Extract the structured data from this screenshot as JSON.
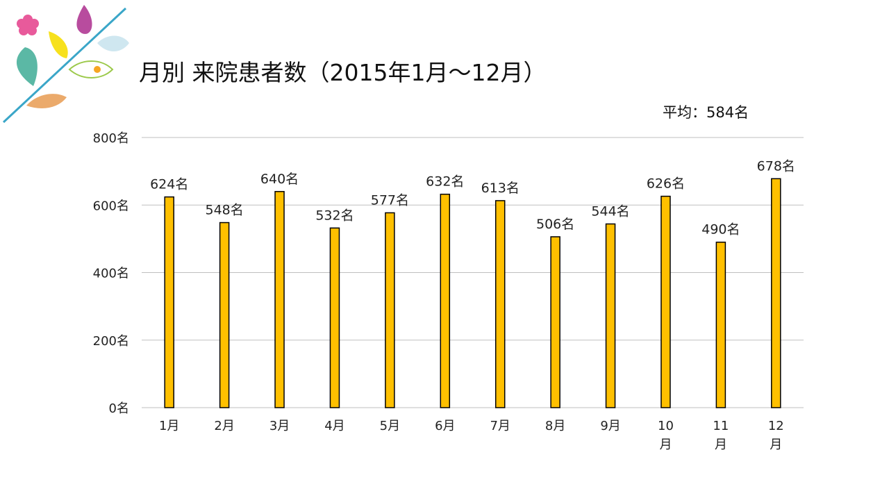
{
  "title": "月別 来院患者数（2015年1月～12月）",
  "average_label": "平均：584名",
  "colors": {
    "bar": "#FFC000",
    "bar_stroke": "#000000",
    "grid": "#BFBFBF"
  },
  "decor": {
    "icons": [
      "pink-flower-icon",
      "magenta-leaf-icon",
      "yellow-leaf-icon",
      "light-blue-leaf-icon",
      "teal-leaf-icon",
      "green-leaf-icon",
      "orange-leaf-icon"
    ]
  },
  "chart_data": {
    "type": "bar",
    "categories": [
      "1月",
      "2月",
      "3月",
      "4月",
      "5月",
      "6月",
      "7月",
      "8月",
      "9月",
      "10月",
      "11月",
      "12月"
    ],
    "category_display": [
      [
        "1月"
      ],
      [
        "2月"
      ],
      [
        "3月"
      ],
      [
        "4月"
      ],
      [
        "5月"
      ],
      [
        "6月"
      ],
      [
        "7月"
      ],
      [
        "8月"
      ],
      [
        "9月"
      ],
      [
        "10",
        "月"
      ],
      [
        "11",
        "月"
      ],
      [
        "12",
        "月"
      ]
    ],
    "values": [
      624,
      548,
      640,
      532,
      577,
      632,
      613,
      506,
      544,
      626,
      490,
      678
    ],
    "data_labels": [
      "624名",
      "548名",
      "640名",
      "532名",
      "577名",
      "632名",
      "613名",
      "506名",
      "544名",
      "626名",
      "490名",
      "678名"
    ],
    "y_ticks": [
      0,
      200,
      400,
      600,
      800
    ],
    "y_tick_labels": [
      "0名",
      "200名",
      "400名",
      "600名",
      "800名"
    ],
    "ylim": [
      0,
      800
    ],
    "grid": true,
    "legend": "none"
  }
}
